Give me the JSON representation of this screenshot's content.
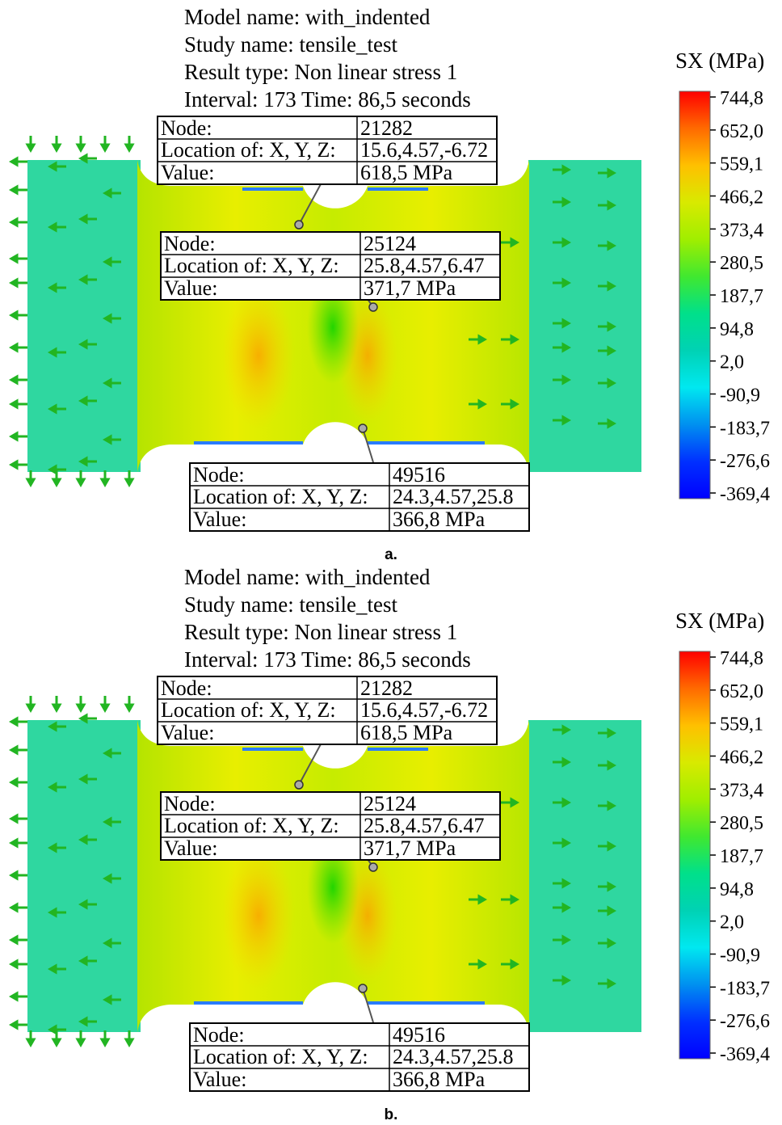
{
  "panels": [
    {
      "caption": "a.",
      "header": [
        "Model name: with_indented",
        "Study name: tensile_test",
        "Result type: Non linear stress 1",
        "Interval: 173 Time: 86,5 seconds"
      ],
      "colorbar": {
        "title": "SX (MPa)",
        "labels": [
          "744,8",
          "652,0",
          "559,1",
          "466,2",
          "373,4",
          "280,5",
          "187,7",
          "94,8",
          "2,0",
          "-90,9",
          "-183,7",
          "-276,6",
          "-369,4"
        ]
      },
      "probes": [
        {
          "node_label": "Node:",
          "node": "21282",
          "loc_label": "Location of: X, Y, Z:",
          "location": "15.6,4.57,-6.72",
          "value_label": "Value:",
          "value": "618,5 MPa"
        },
        {
          "node_label": "Node:",
          "node": "25124",
          "loc_label": "Location of: X, Y, Z:",
          "location": "25.8,4.57,6.47",
          "value_label": "Value:",
          "value": "371,7 MPa"
        },
        {
          "node_label": "Node:",
          "node": "49516",
          "loc_label": "Location of: X, Y, Z:",
          "location": "24.3,4.57,25.8",
          "value_label": "Value:",
          "value": "366,8 MPa"
        }
      ]
    },
    {
      "caption": "b.",
      "header": [
        "Model name: with_indented",
        "Study name: tensile_test",
        "Result type: Non linear stress 1",
        "Interval: 173 Time: 86,5 seconds"
      ],
      "colorbar": {
        "title": "SX (MPa)",
        "labels": [
          "744,8",
          "652,0",
          "559,1",
          "466,2",
          "373,4",
          "280,5",
          "187,7",
          "94,8",
          "2,0",
          "-90,9",
          "-183,7",
          "-276,6",
          "-369,4"
        ]
      },
      "probes": [
        {
          "node_label": "Node:",
          "node": "21282",
          "loc_label": "Location of: X, Y, Z:",
          "location": "15.6,4.57,-6.72",
          "value_label": "Value:",
          "value": "618,5 MPa"
        },
        {
          "node_label": "Node:",
          "node": "25124",
          "loc_label": "Location of: X, Y, Z:",
          "location": "25.8,4.57,6.47",
          "value_label": "Value:",
          "value": "371,7 MPa"
        },
        {
          "node_label": "Node:",
          "node": "49516",
          "loc_label": "Location of: X, Y, Z:",
          "location": "24.3,4.57,25.8",
          "value_label": "Value:",
          "value": "366,8 MPa"
        }
      ]
    }
  ],
  "colors": {
    "grip": "#2ed6a2",
    "fixture_arrows": "#22b522",
    "colormap": [
      "#ff0000",
      "#ff6a00",
      "#ffc000",
      "#d8ea00",
      "#a0ee00",
      "#40e830",
      "#00e08a",
      "#00d2b4",
      "#00e8f0",
      "#0090f0",
      "#0030ff",
      "#0000ff"
    ]
  }
}
